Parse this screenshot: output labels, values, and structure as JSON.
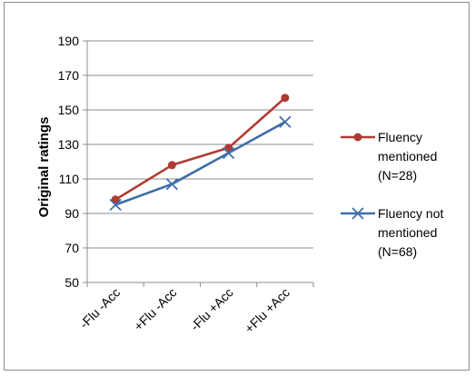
{
  "chart_data": {
    "type": "line",
    "ylabel": "Original ratings",
    "xlabel": "",
    "ylim": [
      50,
      190
    ],
    "yticks": [
      50,
      70,
      90,
      110,
      130,
      150,
      170,
      190
    ],
    "grid": true,
    "legend_position": "right",
    "categories": [
      "-Flu -Acc",
      "+Flu -Acc",
      "-Flu +Acc",
      "+Flu +Acc"
    ],
    "series": [
      {
        "name": "Fluency mentioned (N=28)",
        "legend_lines": [
          "Fluency",
          "mentioned",
          "(N=28)"
        ],
        "marker": "circle",
        "color": "#b03a32",
        "values": [
          98,
          118,
          128,
          157
        ]
      },
      {
        "name": "Fluency not mentioned (N=68)",
        "legend_lines": [
          "Fluency not",
          "mentioned",
          "(N=68)"
        ],
        "marker": "x",
        "color": "#3f6ea8",
        "values": [
          95,
          107,
          125,
          143
        ]
      }
    ]
  }
}
